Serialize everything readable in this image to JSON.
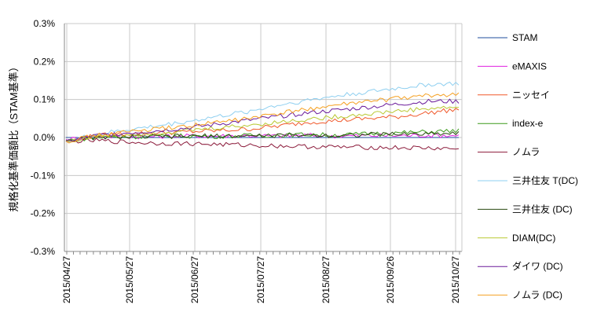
{
  "chart_data": {
    "type": "line",
    "title": "",
    "ylabel": "規格化基準価額比（STAM基準）",
    "xlabel": "",
    "ylim": [
      -0.3,
      0.3
    ],
    "y_ticks": [
      "0.3%",
      "0.2%",
      "0.1%",
      "0.0%",
      "-0.1%",
      "-0.2%",
      "-0.3%"
    ],
    "x_ticks": [
      "2015/04/27",
      "2015/05/27",
      "2015/06/27",
      "2015/07/27",
      "2015/08/27",
      "2015/09/26",
      "2015/10/27"
    ],
    "grid": true,
    "legend_position": "right",
    "x": [
      "2015/04/27",
      "2015/05/12",
      "2015/05/27",
      "2015/06/11",
      "2015/06/27",
      "2015/07/12",
      "2015/07/27",
      "2015/08/11",
      "2015/08/27",
      "2015/09/11",
      "2015/09/26",
      "2015/10/11",
      "2015/10/27",
      "2015/10/31"
    ],
    "series": [
      {
        "name": "STAM",
        "color": "#1f4e9c",
        "values": [
          0,
          0,
          0,
          0,
          0,
          0,
          0,
          0,
          0,
          0,
          0,
          0,
          0,
          0
        ]
      },
      {
        "name": "eMAXIS",
        "color": "#e020e0",
        "values": [
          -0.005,
          0.003,
          0.002,
          0.003,
          0.004,
          0.004,
          0.005,
          0.004,
          0.006,
          0.004,
          0.005,
          0.005,
          0.006,
          0.005
        ]
      },
      {
        "name": "ニッセイ",
        "color": "#f0582a",
        "values": [
          -0.01,
          0.005,
          0.01,
          0.012,
          0.015,
          0.018,
          0.022,
          0.03,
          0.04,
          0.045,
          0.05,
          0.055,
          0.065,
          0.075
        ]
      },
      {
        "name": "index-e",
        "color": "#3a9a1a",
        "values": [
          -0.008,
          0.0,
          0.002,
          0.003,
          0.004,
          0.003,
          0.005,
          0.006,
          0.008,
          0.006,
          0.01,
          0.012,
          0.015,
          0.018
        ]
      },
      {
        "name": "ノムラ",
        "color": "#8b1a3a",
        "values": [
          -0.01,
          -0.008,
          -0.012,
          -0.015,
          -0.016,
          -0.018,
          -0.02,
          -0.022,
          -0.024,
          -0.025,
          -0.026,
          -0.027,
          -0.028,
          -0.03
        ]
      },
      {
        "name": "三井住友 T(DC)",
        "color": "#8ecff0",
        "values": [
          -0.01,
          0.008,
          0.02,
          0.03,
          0.042,
          0.055,
          0.068,
          0.085,
          0.098,
          0.11,
          0.12,
          0.13,
          0.14,
          0.142
        ]
      },
      {
        "name": "三井住友 (DC)",
        "color": "#2a4a10",
        "values": [
          -0.008,
          0.0,
          0.002,
          0.002,
          0.003,
          0.004,
          0.004,
          0.005,
          0.007,
          0.005,
          0.008,
          0.009,
          0.01,
          0.012
        ]
      },
      {
        "name": "DIAM(DC)",
        "color": "#b8c830",
        "values": [
          -0.01,
          0.003,
          0.008,
          0.012,
          0.018,
          0.025,
          0.032,
          0.04,
          0.048,
          0.055,
          0.062,
          0.07,
          0.076,
          0.08
        ]
      },
      {
        "name": "ダイワ (DC)",
        "color": "#6a1a9a",
        "values": [
          -0.01,
          0.005,
          0.012,
          0.018,
          0.025,
          0.035,
          0.045,
          0.055,
          0.065,
          0.072,
          0.08,
          0.088,
          0.095,
          0.095
        ]
      },
      {
        "name": "ノムラ (DC)",
        "color": "#f5a020",
        "values": [
          -0.01,
          0.005,
          0.015,
          0.022,
          0.03,
          0.04,
          0.05,
          0.062,
          0.075,
          0.085,
          0.095,
          0.103,
          0.11,
          0.115
        ]
      }
    ]
  }
}
